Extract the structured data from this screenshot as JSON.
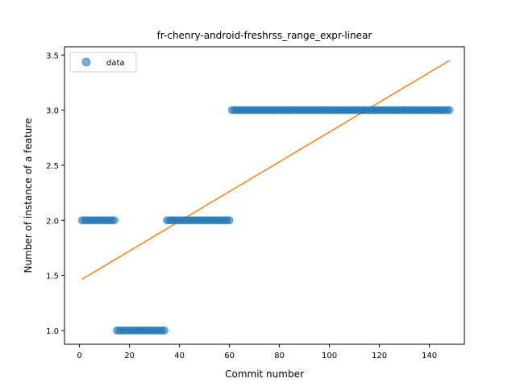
{
  "chart_data": {
    "type": "scatter",
    "title": "fr-chenry-android-freshrss_range_expr-linear",
    "xlabel": "Commit number",
    "ylabel": "Number of instance of a feature",
    "xlim": [
      -6,
      154
    ],
    "ylim": [
      0.875,
      3.575
    ],
    "xticks": [
      0,
      20,
      40,
      60,
      80,
      100,
      120,
      140
    ],
    "yticks": [
      1.0,
      1.5,
      2.0,
      2.5,
      3.0,
      3.5
    ],
    "ytick_labels": [
      "1.0",
      "1.5",
      "2.0",
      "2.5",
      "3.0",
      "3.5"
    ],
    "grid": false,
    "legend_position": "top-left",
    "colors": {
      "data": "#1f77b4",
      "fit": "#ff7f0e"
    },
    "series": [
      {
        "name": "data",
        "kind": "scatter",
        "segments": [
          {
            "x_from": 1,
            "x_to": 14,
            "y": 2.0
          },
          {
            "x_from": 15,
            "x_to": 34,
            "y": 1.0
          },
          {
            "x_from": 35,
            "x_to": 60,
            "y": 2.0
          },
          {
            "x_from": 61,
            "x_to": 148,
            "y": 3.0
          }
        ]
      },
      {
        "kind": "line",
        "x": [
          1,
          148
        ],
        "y": [
          1.465,
          3.45
        ]
      }
    ]
  }
}
